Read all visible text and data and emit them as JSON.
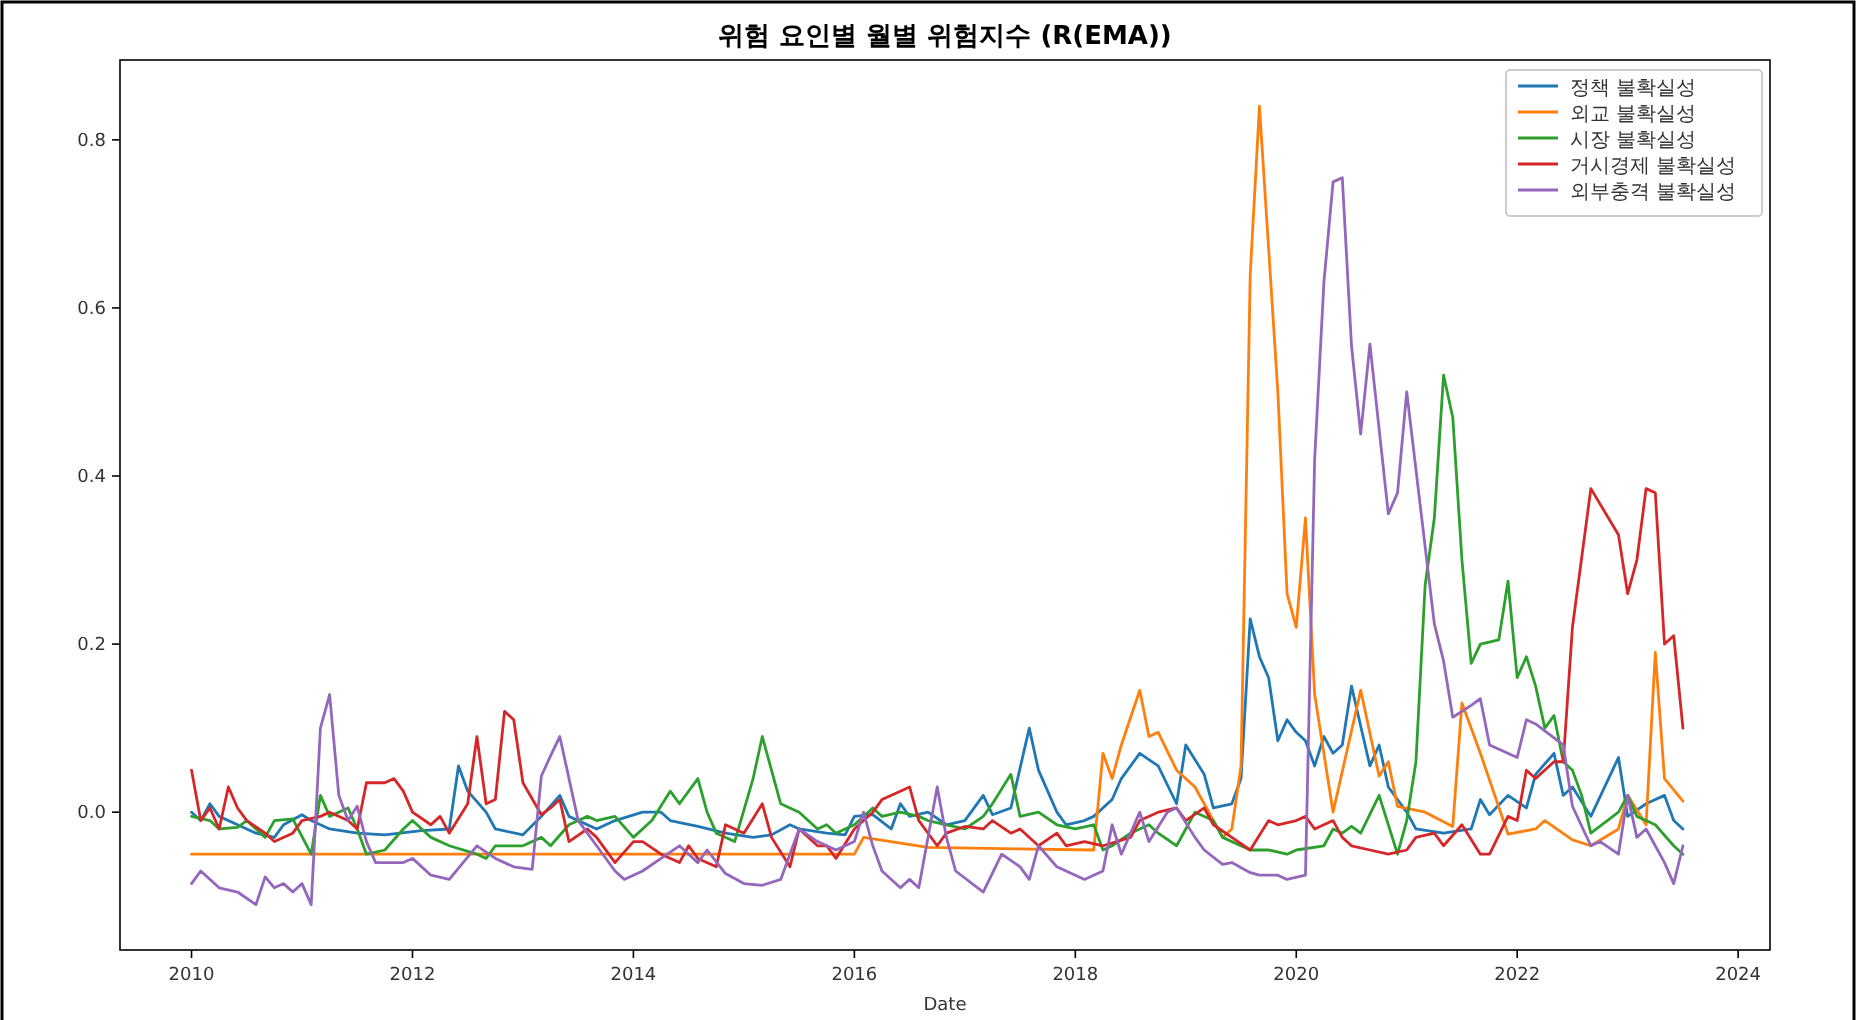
{
  "chart_data": {
    "type": "line",
    "title": "위험 요인별 월별 위험지수 (R(EMA))",
    "xlabel": "Date",
    "legend": "top right",
    "xlim": [
      "2009-05-08",
      "2024-04-15"
    ],
    "ylim": [
      -0.164,
      0.895
    ],
    "xticks": [
      "2010",
      "2012",
      "2014",
      "2016",
      "2018",
      "2020",
      "2022",
      "2024"
    ],
    "yticks": [
      {
        "value": 0,
        "label": "0.0"
      },
      {
        "value": 0.2,
        "label": "0.2"
      },
      {
        "value": 0.4,
        "label": "0.4"
      },
      {
        "value": 0.6,
        "label": "0.6"
      },
      {
        "value": 0.8,
        "label": "0.8"
      }
    ],
    "series": [
      {
        "name": "정책 불확실성",
        "color": "#1f77b4",
        "x": [
          "2010-01",
          "2010-02",
          "2010-03",
          "2010-04",
          "2010-06",
          "2010-08",
          "2010-10",
          "2010-11",
          "2011-01",
          "2011-02",
          "2011-04",
          "2011-07",
          "2011-10",
          "2012-02",
          "2012-05",
          "2012-06",
          "2012-07",
          "2012-09",
          "2012-10",
          "2013-01",
          "2013-03",
          "2013-05",
          "2013-06",
          "2013-09",
          "2013-11",
          "2014-02",
          "2014-04",
          "2014-05",
          "2014-08",
          "2014-11",
          "2015-02",
          "2015-04",
          "2015-06",
          "2015-07",
          "2015-10",
          "2015-12",
          "2016-01",
          "2016-03",
          "2016-05",
          "2016-06",
          "2016-07",
          "2016-09",
          "2016-11",
          "2017-01",
          "2017-03",
          "2017-04",
          "2017-06",
          "2017-08",
          "2017-09",
          "2017-11",
          "2017-12",
          "2018-02",
          "2018-03",
          "2018-05",
          "2018-06",
          "2018-08",
          "2018-10",
          "2018-12",
          "2019-01",
          "2019-03",
          "2019-04",
          "2019-06",
          "2019-07",
          "2019-08",
          "2019-09",
          "2019-10",
          "2019-11",
          "2019-12",
          "2020-01",
          "2020-02",
          "2020-03",
          "2020-04",
          "2020-05",
          "2020-06",
          "2020-07",
          "2020-09",
          "2020-10",
          "2020-11",
          "2021-01",
          "2021-02",
          "2021-05",
          "2021-08",
          "2021-09",
          "2021-10",
          "2021-12",
          "2022-02",
          "2022-03",
          "2022-05",
          "2022-06",
          "2022-07",
          "2022-09",
          "2022-12",
          "2023-01",
          "2023-03",
          "2023-05",
          "2023-06",
          "2023-07"
        ],
        "values": [
          0.0,
          -0.01,
          0.01,
          -0.005,
          -0.015,
          -0.025,
          -0.03,
          -0.015,
          -0.003,
          -0.01,
          -0.02,
          -0.025,
          -0.027,
          -0.022,
          -0.02,
          0.055,
          0.025,
          0.0,
          -0.02,
          -0.027,
          -0.005,
          0.02,
          -0.005,
          -0.02,
          -0.01,
          0.0,
          0.0,
          -0.01,
          -0.017,
          -0.025,
          -0.03,
          -0.027,
          -0.015,
          -0.02,
          -0.025,
          -0.027,
          -0.005,
          -0.003,
          -0.02,
          0.01,
          -0.005,
          0.0,
          -0.015,
          -0.01,
          0.02,
          -0.003,
          0.005,
          0.1,
          0.05,
          0.0,
          -0.015,
          -0.01,
          -0.005,
          0.015,
          0.04,
          0.07,
          0.055,
          0.01,
          0.08,
          0.045,
          0.005,
          0.01,
          0.04,
          0.23,
          0.185,
          0.16,
          0.085,
          0.11,
          0.095,
          0.085,
          0.055,
          0.09,
          0.07,
          0.08,
          0.15,
          0.055,
          0.08,
          0.03,
          0.0,
          -0.02,
          -0.025,
          -0.02,
          0.015,
          -0.003,
          0.02,
          0.005,
          0.045,
          0.07,
          0.02,
          0.03,
          -0.005,
          0.065,
          -0.005,
          0.01,
          0.02,
          -0.01,
          -0.02
        ]
      },
      {
        "name": "외교 불확실성",
        "color": "#ff7f0e",
        "x": [
          "2010-01",
          "2016-01",
          "2016-02",
          "2016-09",
          "2018-03",
          "2018-04",
          "2018-05",
          "2018-06",
          "2018-08",
          "2018-09",
          "2018-10",
          "2018-12",
          "2019-02",
          "2019-04",
          "2019-05",
          "2019-06",
          "2019-07",
          "2019-08",
          "2019-09",
          "2019-11",
          "2019-12",
          "2020-01",
          "2020-02",
          "2020-03",
          "2020-05",
          "2020-08",
          "2020-10",
          "2020-11",
          "2020-12",
          "2021-03",
          "2021-06",
          "2021-07",
          "2021-09",
          "2021-12",
          "2022-03",
          "2022-04",
          "2022-07",
          "2022-09",
          "2022-12",
          "2023-01",
          "2023-03",
          "2023-04",
          "2023-05",
          "2023-07"
        ],
        "values": [
          -0.05,
          -0.05,
          -0.03,
          -0.042,
          -0.045,
          0.07,
          0.04,
          0.08,
          0.145,
          0.09,
          0.095,
          0.05,
          0.03,
          -0.01,
          -0.03,
          -0.02,
          0.055,
          0.64,
          0.84,
          0.5,
          0.26,
          0.22,
          0.35,
          0.14,
          0.0,
          0.145,
          0.043,
          0.06,
          0.007,
          0.0,
          -0.017,
          0.13,
          0.07,
          -0.026,
          -0.02,
          -0.01,
          -0.033,
          -0.04,
          -0.02,
          0.02,
          -0.015,
          0.19,
          0.04,
          0.013
        ]
      },
      {
        "name": "시장 불확실성",
        "color": "#2ca02c",
        "x": [
          "2010-01",
          "2010-03",
          "2010-04",
          "2010-06",
          "2010-07",
          "2010-09",
          "2010-10",
          "2010-12",
          "2011-02",
          "2011-03",
          "2011-04",
          "2011-06",
          "2011-07",
          "2011-08",
          "2011-10",
          "2011-12",
          "2012-01",
          "2012-03",
          "2012-05",
          "2012-08",
          "2012-09",
          "2012-10",
          "2013-01",
          "2013-03",
          "2013-04",
          "2013-06",
          "2013-08",
          "2013-09",
          "2013-11",
          "2014-01",
          "2014-03",
          "2014-05",
          "2014-06",
          "2014-08",
          "2014-09",
          "2014-10",
          "2014-12",
          "2015-02",
          "2015-03",
          "2015-05",
          "2015-07",
          "2015-09",
          "2015-10",
          "2015-11",
          "2016-01",
          "2016-03",
          "2016-04",
          "2016-06",
          "2016-08",
          "2016-09",
          "2016-11",
          "2017-01",
          "2017-03",
          "2017-04",
          "2017-06",
          "2017-07",
          "2017-09",
          "2017-11",
          "2018-01",
          "2018-03",
          "2018-04",
          "2018-05",
          "2018-07",
          "2018-09",
          "2018-10",
          "2018-12",
          "2019-02",
          "2019-04",
          "2019-05",
          "2019-08",
          "2019-10",
          "2019-12",
          "2020-01",
          "2020-04",
          "2020-05",
          "2020-06",
          "2020-07",
          "2020-08",
          "2020-10",
          "2020-11",
          "2020-12",
          "2021-01",
          "2021-02",
          "2021-03",
          "2021-04",
          "2021-05",
          "2021-06",
          "2021-07",
          "2021-08",
          "2021-09",
          "2021-11",
          "2021-12",
          "2022-01",
          "2022-02",
          "2022-03",
          "2022-04",
          "2022-05",
          "2022-06",
          "2022-07",
          "2022-08",
          "2022-09",
          "2022-12",
          "2023-01",
          "2023-02",
          "2023-04",
          "2023-06",
          "2023-07"
        ],
        "values": [
          -0.005,
          -0.01,
          -0.02,
          -0.018,
          -0.01,
          -0.03,
          -0.01,
          -0.008,
          -0.05,
          0.02,
          -0.005,
          0.005,
          -0.02,
          -0.05,
          -0.045,
          -0.02,
          -0.01,
          -0.03,
          -0.04,
          -0.05,
          -0.055,
          -0.04,
          -0.04,
          -0.03,
          -0.04,
          -0.015,
          -0.005,
          -0.01,
          -0.005,
          -0.03,
          -0.01,
          0.025,
          0.01,
          0.04,
          0.0,
          -0.025,
          -0.035,
          0.04,
          0.09,
          0.01,
          0.0,
          -0.02,
          -0.015,
          -0.025,
          -0.015,
          0.005,
          -0.005,
          0.0,
          -0.005,
          -0.01,
          -0.015,
          -0.02,
          -0.005,
          0.01,
          0.045,
          -0.005,
          0.0,
          -0.015,
          -0.02,
          -0.015,
          -0.045,
          -0.04,
          -0.025,
          -0.015,
          -0.025,
          -0.04,
          0.0,
          -0.01,
          -0.03,
          -0.045,
          -0.045,
          -0.05,
          -0.045,
          -0.04,
          -0.02,
          -0.025,
          -0.017,
          -0.025,
          0.02,
          -0.015,
          -0.05,
          -0.01,
          0.06,
          0.27,
          0.35,
          0.52,
          0.47,
          0.3,
          0.177,
          0.2,
          0.205,
          0.275,
          0.16,
          0.185,
          0.15,
          0.1,
          0.115,
          0.06,
          0.05,
          0.02,
          -0.025,
          0.0,
          0.02,
          -0.005,
          -0.015,
          -0.04,
          -0.05
        ]
      },
      {
        "name": "거시경제 불확실성",
        "color": "#d62728",
        "x": [
          "2010-01",
          "2010-02",
          "2010-03",
          "2010-04",
          "2010-05",
          "2010-06",
          "2010-07",
          "2010-09",
          "2010-10",
          "2010-12",
          "2011-01",
          "2011-03",
          "2011-04",
          "2011-06",
          "2011-07",
          "2011-08",
          "2011-10",
          "2011-11",
          "2011-12",
          "2012-01",
          "2012-03",
          "2012-04",
          "2012-05",
          "2012-07",
          "2012-08",
          "2012-09",
          "2012-10",
          "2012-11",
          "2012-12",
          "2013-01",
          "2013-03",
          "2013-04",
          "2013-05",
          "2013-06",
          "2013-08",
          "2013-09",
          "2013-11",
          "2014-01",
          "2014-02",
          "2014-04",
          "2014-06",
          "2014-07",
          "2014-08",
          "2014-10",
          "2014-11",
          "2015-01",
          "2015-03",
          "2015-04",
          "2015-06",
          "2015-07",
          "2015-09",
          "2015-10",
          "2015-11",
          "2016-01",
          "2016-03",
          "2016-04",
          "2016-06",
          "2016-07",
          "2016-08",
          "2016-10",
          "2016-11",
          "2017-01",
          "2017-03",
          "2017-04",
          "2017-06",
          "2017-07",
          "2017-09",
          "2017-11",
          "2017-12",
          "2018-02",
          "2018-04",
          "2018-07",
          "2018-08",
          "2018-10",
          "2018-12",
          "2019-01",
          "2019-03",
          "2019-04",
          "2019-06",
          "2019-08",
          "2019-10",
          "2019-11",
          "2020-01",
          "2020-02",
          "2020-03",
          "2020-05",
          "2020-06",
          "2020-07",
          "2020-09",
          "2020-11",
          "2021-01",
          "2021-02",
          "2021-04",
          "2021-05",
          "2021-07",
          "2021-09",
          "2021-10",
          "2021-12",
          "2022-01",
          "2022-02",
          "2022-03",
          "2022-05",
          "2022-06",
          "2022-07",
          "2022-09",
          "2022-12",
          "2023-01",
          "2023-02",
          "2023-03",
          "2023-04",
          "2023-05",
          "2023-06",
          "2023-07"
        ],
        "values": [
          0.05,
          -0.01,
          0.005,
          -0.02,
          0.03,
          0.005,
          -0.01,
          -0.025,
          -0.035,
          -0.025,
          -0.01,
          -0.005,
          0.0,
          -0.01,
          -0.02,
          0.035,
          0.035,
          0.04,
          0.025,
          0.0,
          -0.015,
          -0.005,
          -0.025,
          0.01,
          0.09,
          0.01,
          0.015,
          0.12,
          0.11,
          0.035,
          -0.003,
          0.005,
          0.015,
          -0.035,
          -0.02,
          -0.03,
          -0.06,
          -0.035,
          -0.035,
          -0.05,
          -0.06,
          -0.04,
          -0.055,
          -0.065,
          -0.015,
          -0.025,
          0.01,
          -0.03,
          -0.065,
          -0.02,
          -0.04,
          -0.04,
          -0.055,
          -0.02,
          0.0,
          0.015,
          0.025,
          0.03,
          -0.01,
          -0.04,
          -0.025,
          -0.017,
          -0.02,
          -0.01,
          -0.025,
          -0.02,
          -0.04,
          -0.025,
          -0.04,
          -0.035,
          -0.04,
          -0.03,
          -0.01,
          0.0,
          0.005,
          -0.01,
          0.005,
          -0.015,
          -0.03,
          -0.045,
          -0.01,
          -0.015,
          -0.01,
          -0.005,
          -0.02,
          -0.01,
          -0.03,
          -0.04,
          -0.045,
          -0.05,
          -0.045,
          -0.03,
          -0.025,
          -0.04,
          -0.015,
          -0.05,
          -0.05,
          -0.005,
          -0.01,
          0.05,
          0.04,
          0.06,
          0.06,
          0.22,
          0.385,
          0.33,
          0.26,
          0.3,
          0.385,
          0.38,
          0.2,
          0.21,
          0.1
        ]
      },
      {
        "name": "외부충격 불확실성",
        "color": "#9467bd",
        "x": [
          "2010-01",
          "2010-02",
          "2010-04",
          "2010-06",
          "2010-08",
          "2010-09",
          "2010-10",
          "2010-11",
          "2010-12",
          "2011-01",
          "2011-02",
          "2011-03",
          "2011-04",
          "2011-05",
          "2011-06",
          "2011-07",
          "2011-08",
          "2011-09",
          "2011-12",
          "2012-01",
          "2012-03",
          "2012-05",
          "2012-08",
          "2012-10",
          "2012-12",
          "2013-02",
          "2013-03",
          "2013-04",
          "2013-05",
          "2013-07",
          "2013-09",
          "2013-11",
          "2013-12",
          "2014-02",
          "2014-04",
          "2014-06",
          "2014-08",
          "2014-09",
          "2014-11",
          "2015-01",
          "2015-03",
          "2015-05",
          "2015-07",
          "2015-09",
          "2015-11",
          "2016-01",
          "2016-02",
          "2016-03",
          "2016-04",
          "2016-06",
          "2016-07",
          "2016-08",
          "2016-10",
          "2016-11",
          "2016-12",
          "2017-03",
          "2017-05",
          "2017-07",
          "2017-08",
          "2017-09",
          "2017-11",
          "2017-12",
          "2018-02",
          "2018-04",
          "2018-05",
          "2018-06",
          "2018-08",
          "2018-09",
          "2018-11",
          "2018-12",
          "2019-02",
          "2019-03",
          "2019-05",
          "2019-06",
          "2019-08",
          "2019-09",
          "2019-11",
          "2019-12",
          "2020-02",
          "2020-03",
          "2020-04",
          "2020-05",
          "2020-06",
          "2020-07",
          "2020-08",
          "2020-09",
          "2020-11",
          "2020-12",
          "2021-01",
          "2021-04",
          "2021-05",
          "2021-06",
          "2021-08",
          "2021-09",
          "2021-10",
          "2022-01",
          "2022-02",
          "2022-03",
          "2022-06",
          "2022-07",
          "2022-09",
          "2022-10",
          "2022-12",
          "2023-01",
          "2023-02",
          "2023-03",
          "2023-05",
          "2023-06",
          "2023-07"
        ],
        "values": [
          -0.085,
          -0.07,
          -0.09,
          -0.095,
          -0.11,
          -0.077,
          -0.09,
          -0.085,
          -0.095,
          -0.085,
          -0.11,
          0.1,
          0.14,
          0.02,
          -0.01,
          0.007,
          -0.035,
          -0.06,
          -0.06,
          -0.055,
          -0.075,
          -0.08,
          -0.04,
          -0.055,
          -0.065,
          -0.068,
          0.043,
          0.067,
          0.09,
          -0.01,
          -0.04,
          -0.07,
          -0.08,
          -0.07,
          -0.055,
          -0.04,
          -0.06,
          -0.045,
          -0.073,
          -0.085,
          -0.087,
          -0.08,
          -0.02,
          -0.035,
          -0.045,
          -0.035,
          0.0,
          -0.04,
          -0.07,
          -0.09,
          -0.08,
          -0.09,
          0.03,
          -0.03,
          -0.07,
          -0.095,
          -0.05,
          -0.065,
          -0.08,
          -0.04,
          -0.065,
          -0.07,
          -0.08,
          -0.07,
          -0.015,
          -0.05,
          0.0,
          -0.035,
          0.0,
          0.005,
          -0.03,
          -0.045,
          -0.062,
          -0.06,
          -0.072,
          -0.075,
          -0.075,
          -0.08,
          -0.075,
          0.42,
          0.63,
          0.75,
          0.755,
          0.555,
          0.45,
          0.557,
          0.355,
          0.38,
          0.5,
          0.224,
          0.18,
          0.113,
          0.127,
          0.135,
          0.08,
          0.065,
          0.11,
          0.105,
          0.08,
          0.007,
          -0.04,
          -0.035,
          -0.05,
          0.02,
          -0.03,
          -0.02,
          -0.06,
          -0.085,
          -0.04
        ]
      }
    ]
  }
}
